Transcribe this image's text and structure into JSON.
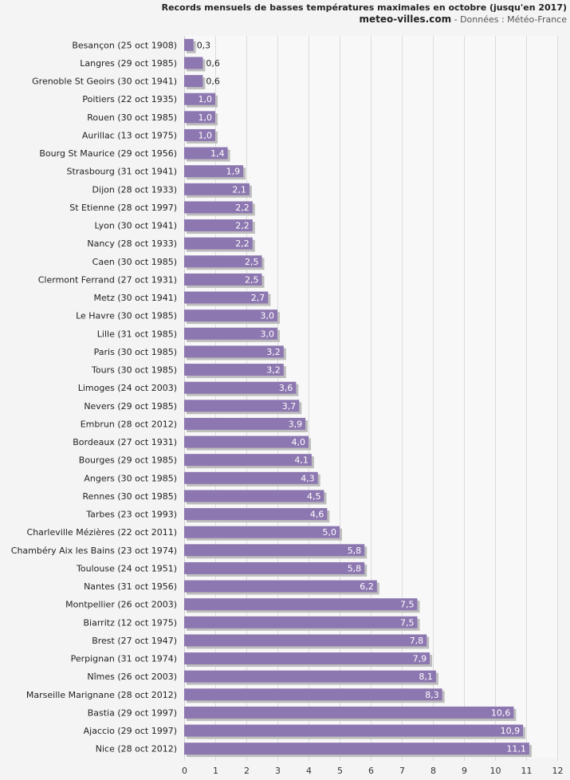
{
  "chart_data": {
    "type": "bar",
    "orientation": "horizontal",
    "title": "Records mensuels de basses températures maximales en octobre (jusqu'en 2017)",
    "subtitle_site": "meteo-villes.com",
    "subtitle_source": " - Données : Météo-France",
    "xlim": [
      0,
      12
    ],
    "xticks": [
      "0",
      "1",
      "2",
      "3",
      "4",
      "5",
      "6",
      "7",
      "8",
      "9",
      "10",
      "11",
      "12"
    ],
    "grid": true,
    "bar_color": "#8c77b0",
    "bar_shadow_color": "#bdbdbd",
    "grid_color": "#dcdcdc",
    "categories": [
      "Besançon (25 oct 1908)",
      "Langres (29 oct 1985)",
      "Grenoble St Geoirs (30 oct 1941)",
      "Poitiers (22 oct 1935)",
      "Rouen (30 oct 1985)",
      "Aurillac (13 oct 1975)",
      "Bourg St Maurice (29 oct 1956)",
      "Strasbourg (31 oct 1941)",
      "Dijon (28 oct 1933)",
      "St Etienne (28 oct 1997)",
      "Lyon (30 oct 1941)",
      "Nancy (28 oct 1933)",
      "Caen (30 oct 1985)",
      "Clermont Ferrand (27 oct 1931)",
      "Metz (30 oct 1941)",
      "Le Havre (30 oct 1985)",
      "Lille (31 oct 1985)",
      "Paris (30 oct 1985)",
      "Tours (30 oct 1985)",
      "Limoges (24 oct 2003)",
      "Nevers (29 oct 1985)",
      "Embrun (28 oct 2012)",
      "Bordeaux (27 oct 1931)",
      "Bourges (29 oct 1985)",
      "Angers (30 oct 1985)",
      "Rennes (30 oct 1985)",
      "Tarbes (23 oct 1993)",
      "Charleville Mézières (22 oct 2011)",
      "Chambéry Aix les Bains (23 oct 1974)",
      "Toulouse (24 oct 1951)",
      "Nantes (31 oct 1956)",
      "Montpellier (26 oct 2003)",
      "Biarritz (12 oct 1975)",
      "Brest (27 oct 1947)",
      "Perpignan (31 oct 1974)",
      "Nîmes (26 oct 2003)",
      "Marseille Marignane (28 oct 2012)",
      "Bastia (29 oct 1997)",
      "Ajaccio (29 oct 1997)",
      "Nice (28 oct 2012)"
    ],
    "values": [
      0.3,
      0.6,
      0.6,
      1.0,
      1.0,
      1.0,
      1.4,
      1.9,
      2.1,
      2.2,
      2.2,
      2.2,
      2.5,
      2.5,
      2.7,
      3.0,
      3.0,
      3.2,
      3.2,
      3.6,
      3.7,
      3.9,
      4.0,
      4.1,
      4.3,
      4.5,
      4.6,
      5.0,
      5.8,
      5.8,
      6.2,
      7.5,
      7.5,
      7.8,
      7.9,
      8.1,
      8.3,
      10.6,
      10.9,
      11.1
    ],
    "value_labels": [
      "0,3",
      "0,6",
      "0,6",
      "1,0",
      "1,0",
      "1,0",
      "1,4",
      "1,9",
      "2,1",
      "2,2",
      "2,2",
      "2,2",
      "2,5",
      "2,5",
      "2,7",
      "3,0",
      "3,0",
      "3,2",
      "3,2",
      "3,6",
      "3,7",
      "3,9",
      "4,0",
      "4,1",
      "4,3",
      "4,5",
      "4,6",
      "5,0",
      "5,8",
      "5,8",
      "6,2",
      "7,5",
      "7,5",
      "7,8",
      "7,9",
      "8,1",
      "8,3",
      "10,6",
      "10,9",
      "11,1"
    ]
  }
}
